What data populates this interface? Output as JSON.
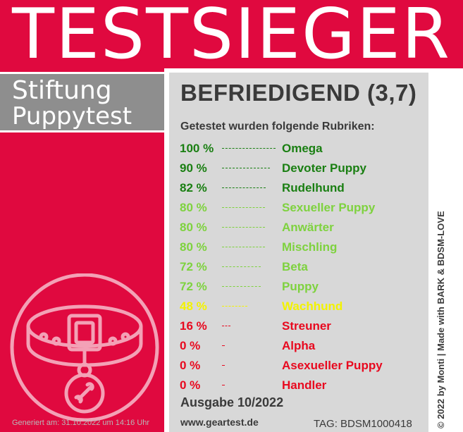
{
  "banner": {
    "title": "TESTSIEGER"
  },
  "brand": {
    "line1": "Stiftung",
    "line2": "Puppytest"
  },
  "result": {
    "rating": "BEFRIEDIGEND (3,7)",
    "intro": "Getestet wurden folgende Rubriken:",
    "items": [
      {
        "percent_label": "100 %",
        "value": 100,
        "category": "Omega",
        "color": "#1a7f12"
      },
      {
        "percent_label": "90 %",
        "value": 90,
        "category": "Devoter Puppy",
        "color": "#1a7f12"
      },
      {
        "percent_label": "82 %",
        "value": 82,
        "category": "Rudelhund",
        "color": "#1a7f12"
      },
      {
        "percent_label": "80 %",
        "value": 80,
        "category": "Sexueller Puppy",
        "color": "#7ed23e"
      },
      {
        "percent_label": "80 %",
        "value": 80,
        "category": "Anwärter",
        "color": "#7ed23e"
      },
      {
        "percent_label": "80 %",
        "value": 80,
        "category": "Mischling",
        "color": "#7ed23e"
      },
      {
        "percent_label": "72 %",
        "value": 72,
        "category": "Beta",
        "color": "#7ed23e"
      },
      {
        "percent_label": "72 %",
        "value": 72,
        "category": "Puppy",
        "color": "#7ed23e"
      },
      {
        "percent_label": "48 %",
        "value": 48,
        "category": "Wachhund",
        "color": "#f3f300"
      },
      {
        "percent_label": "16 %",
        "value": 16,
        "category": "Streuner",
        "color": "#e8091f"
      },
      {
        "percent_label": "0 %",
        "value": 0,
        "category": "Alpha",
        "color": "#e8091f"
      },
      {
        "percent_label": "0 %",
        "value": 0,
        "category": "Asexueller Puppy",
        "color": "#e8091f"
      },
      {
        "percent_label": "0 %",
        "value": 0,
        "category": "Handler",
        "color": "#e8091f"
      }
    ]
  },
  "footer": {
    "issue": "Ausgabe 10/2022",
    "website": "www.geartest.de",
    "tag": "TAG: BDSM1000418",
    "generated": "Generiert am: 31.10.2022 um 14:16 Uhr"
  },
  "side_copyright": "© 2022 by Monti | Made with BARK & BDSM-LOVE",
  "colors": {
    "brand_red": "#e0093f",
    "panel_gray": "#d8d8d8",
    "brand_gray": "#8e8e8e",
    "text_dark": "#3a3a3a"
  },
  "icons": {
    "logo": "dog-collar-icon"
  }
}
